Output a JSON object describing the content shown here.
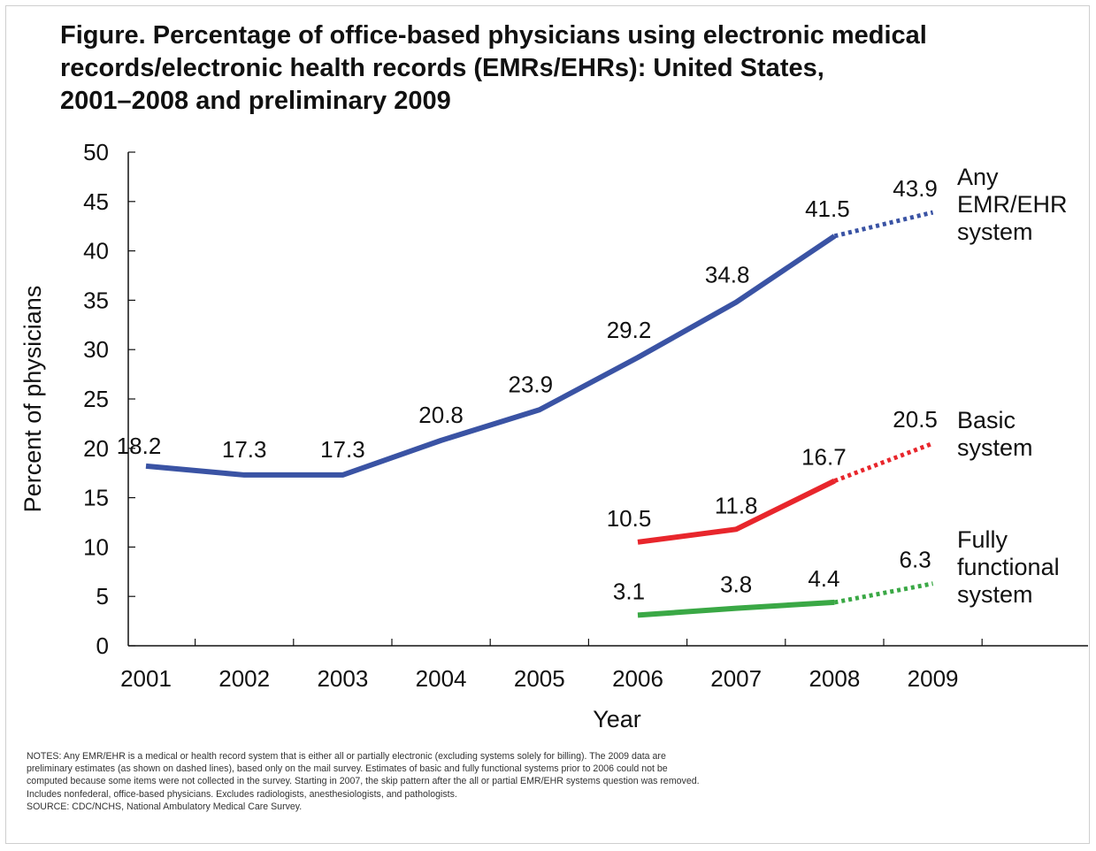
{
  "title_lines": [
    "Figure. Percentage of office-based physicians using electronic medical",
    "records/electronic health records (EMRs/EHRs): United States,",
    "2001–2008 and preliminary 2009"
  ],
  "notes_lines": [
    "NOTES: Any EMR/EHR is a medical or health record system that is either all or partially electronic (excluding systems solely for billing). The 2009 data are",
    "preliminary estimates (as shown on dashed lines), based only on the mail survey. Estimates of basic and fully functional systems prior to 2006 could not be",
    "computed because some items were not collected in the survey. Starting in 2007, the skip pattern after the all or partial EMR/EHR systems question was removed.",
    "Includes nonfederal, office-based physicians. Excludes radiologists, anesthesiologists, and pathologists.",
    "SOURCE: CDC/NCHS, National Ambulatory Medical Care Survey."
  ],
  "chart_data": {
    "type": "line",
    "xlabel": "Year",
    "ylabel": "Percent of physicians",
    "ylim": [
      0,
      50
    ],
    "yticks": [
      0,
      5,
      10,
      15,
      20,
      25,
      30,
      35,
      40,
      45,
      50
    ],
    "xticks": [
      "2001",
      "2002",
      "2003",
      "2004",
      "2005",
      "2006",
      "2007",
      "2008",
      "2009"
    ],
    "grid": false,
    "preliminary_year": "2009",
    "series": [
      {
        "name": "Any EMR/EHR system",
        "label_lines": [
          "Any",
          "EMR/EHR",
          "system"
        ],
        "color": "#3a53a4",
        "x": [
          "2001",
          "2002",
          "2003",
          "2004",
          "2005",
          "2006",
          "2007",
          "2008",
          "2009"
        ],
        "values": [
          18.2,
          17.3,
          17.3,
          20.8,
          23.9,
          29.2,
          34.8,
          41.5,
          43.9
        ],
        "data_labels": [
          "18.2",
          "17.3",
          "17.3",
          "20.8",
          "23.9",
          "29.2",
          "34.8",
          "41.5",
          "43.9"
        ]
      },
      {
        "name": "Basic system",
        "label_lines": [
          "Basic",
          "system"
        ],
        "color": "#e8262c",
        "x": [
          "2006",
          "2007",
          "2008",
          "2009"
        ],
        "values": [
          10.5,
          11.8,
          16.7,
          20.5
        ],
        "data_labels": [
          "10.5",
          "11.8",
          "16.7",
          "20.5"
        ]
      },
      {
        "name": "Fully functional system",
        "label_lines": [
          "Fully",
          "functional",
          "system"
        ],
        "color": "#3aa845",
        "x": [
          "2006",
          "2007",
          "2008",
          "2009"
        ],
        "values": [
          3.1,
          3.8,
          4.4,
          6.3
        ],
        "data_labels": [
          "3.1",
          "3.8",
          "4.4",
          "6.3"
        ]
      }
    ]
  }
}
